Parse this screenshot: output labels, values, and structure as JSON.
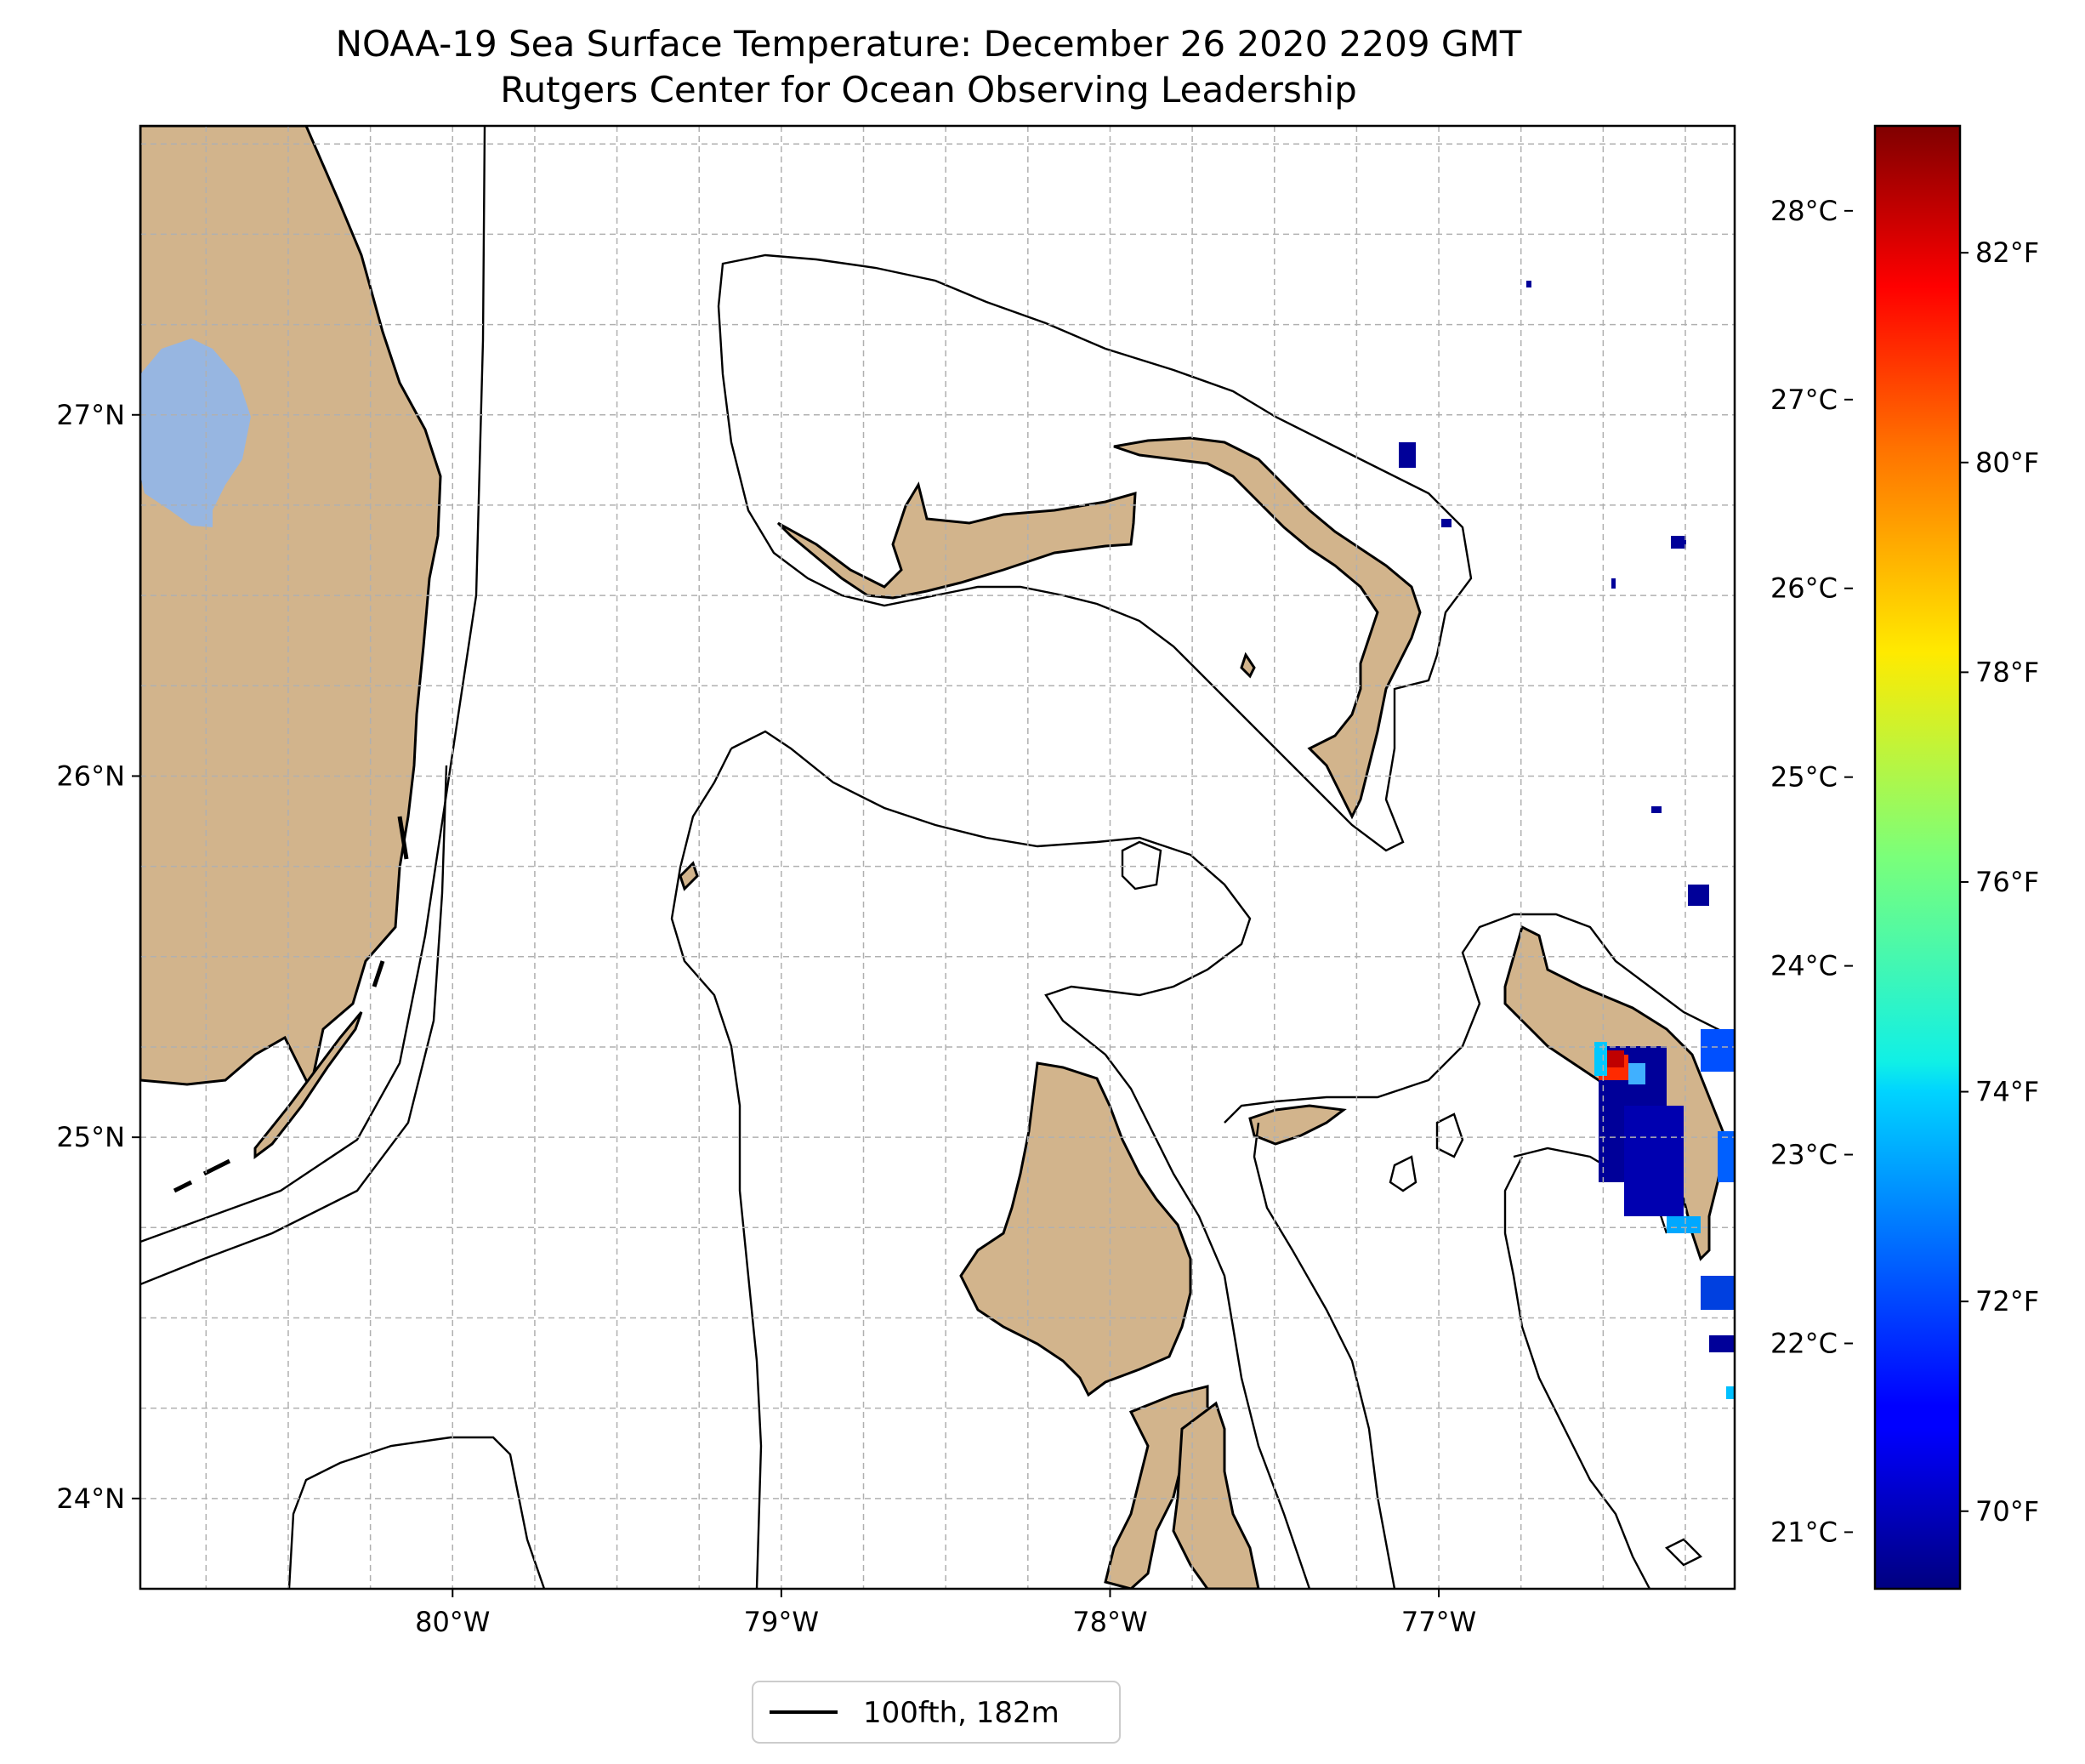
{
  "title": {
    "line1": "NOAA-19 Sea Surface Temperature: December 26 2020 2209 GMT",
    "line2": "Rutgers Center for Ocean Observing Leadership"
  },
  "map": {
    "lon_range": [
      -80.95,
      -76.1
    ],
    "lat_range": [
      23.75,
      27.8
    ],
    "lon_ticks": [
      {
        "value": -80,
        "label": "80°W"
      },
      {
        "value": -79,
        "label": "79°W"
      },
      {
        "value": -78,
        "label": "78°W"
      },
      {
        "value": -77,
        "label": "77°W"
      }
    ],
    "lat_ticks": [
      {
        "value": 24,
        "label": "24°N"
      },
      {
        "value": 25,
        "label": "25°N"
      },
      {
        "value": 26,
        "label": "26°N"
      },
      {
        "value": 27,
        "label": "27°N"
      }
    ],
    "land_color": "#d2b48c",
    "lake_color": "#97b6e1",
    "grid": "dashed"
  },
  "colorbar": {
    "cmap": "jet",
    "celsius_ticks": [
      {
        "value": 21,
        "label": "21°C"
      },
      {
        "value": 22,
        "label": "22°C"
      },
      {
        "value": 23,
        "label": "23°C"
      },
      {
        "value": 24,
        "label": "24°C"
      },
      {
        "value": 25,
        "label": "25°C"
      },
      {
        "value": 26,
        "label": "26°C"
      },
      {
        "value": 27,
        "label": "27°C"
      },
      {
        "value": 28,
        "label": "28°C"
      }
    ],
    "fahrenheit_ticks": [
      {
        "value": 70,
        "label": "70°F"
      },
      {
        "value": 72,
        "label": "72°F"
      },
      {
        "value": 74,
        "label": "74°F"
      },
      {
        "value": 76,
        "label": "76°F"
      },
      {
        "value": 78,
        "label": "78°F"
      },
      {
        "value": 80,
        "label": "80°F"
      },
      {
        "value": 82,
        "label": "82°F"
      }
    ]
  },
  "legend": {
    "label": "100fth, 182m"
  }
}
